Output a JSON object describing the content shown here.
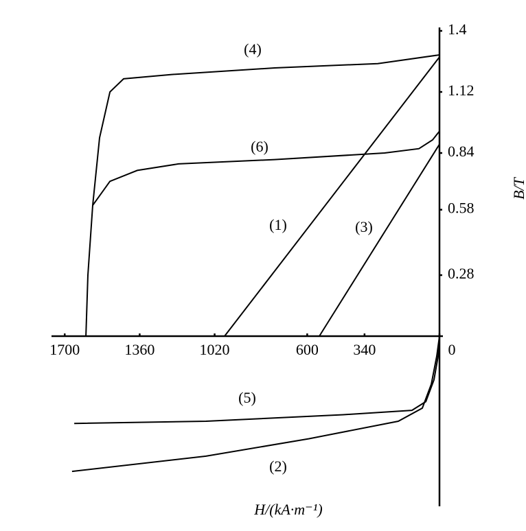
{
  "chart_data": {
    "type": "line",
    "x_label": "H/(kA·m⁻¹)",
    "y_label": "B/T",
    "xlim": [
      1760,
      0
    ],
    "ylim": [
      -0.78,
      1.4
    ],
    "xticks": [
      1700,
      1360,
      1020,
      600,
      340,
      0
    ],
    "yticks": [
      0.28,
      0.58,
      0.84,
      1.12,
      1.4
    ],
    "color": "#000000",
    "series": [
      {
        "name": "(1)",
        "x": [
          975,
          0
        ],
        "values": [
          0,
          1.28
        ]
      },
      {
        "name": "(2)",
        "x": [
          1667,
          1059,
          592,
          187,
          78,
          37,
          12,
          0
        ],
        "values": [
          -0.62,
          -0.55,
          -0.47,
          -0.39,
          -0.33,
          -0.22,
          -0.09,
          0
        ]
      },
      {
        "name": "(3)",
        "x": [
          545,
          0
        ],
        "values": [
          0,
          0.88
        ]
      },
      {
        "name": "(4)",
        "x": [
          1604,
          1595,
          1573,
          1542,
          1495,
          1433,
          1215,
          748,
          280,
          0
        ],
        "values": [
          0,
          0.28,
          0.6,
          0.91,
          1.12,
          1.18,
          1.2,
          1.23,
          1.25,
          1.29
        ]
      },
      {
        "name": "(5)",
        "x": [
          1657,
          1059,
          436,
          125,
          62,
          25,
          6,
          0
        ],
        "values": [
          -0.4,
          -0.39,
          -0.36,
          -0.34,
          -0.3,
          -0.2,
          -0.09,
          0
        ]
      },
      {
        "name": "(6)",
        "x": [
          1573,
          1495,
          1371,
          1184,
          748,
          249,
          93,
          31,
          0
        ],
        "values": [
          0.6,
          0.71,
          0.76,
          0.79,
          0.81,
          0.84,
          0.86,
          0.9,
          0.94
        ]
      }
    ]
  }
}
